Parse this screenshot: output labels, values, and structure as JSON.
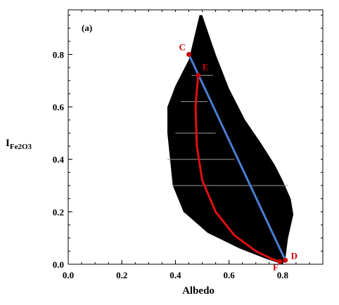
{
  "chart_data": {
    "type": "scatter",
    "panel_label": "(a)",
    "xlabel": "Albedo",
    "ylabel_main": "I",
    "ylabel_sub": "Fe2O3",
    "xlim": [
      0.0,
      0.95
    ],
    "ylim": [
      0.0,
      0.97
    ],
    "x_ticks": [
      0.0,
      0.2,
      0.4,
      0.6,
      0.8
    ],
    "x_tick_labels": [
      "0.0",
      "0.2",
      "0.4",
      "0.6",
      "0.8"
    ],
    "y_ticks": [
      0.0,
      0.2,
      0.4,
      0.6,
      0.8
    ],
    "y_tick_labels": [
      "0.0",
      "0.2",
      "0.4",
      "0.6",
      "0.8"
    ],
    "grid": false,
    "scatter_boundary": {
      "right_edge": [
        [
          0.5,
          0.95
        ],
        [
          0.55,
          0.8
        ],
        [
          0.6,
          0.67
        ],
        [
          0.66,
          0.55
        ],
        [
          0.72,
          0.46
        ],
        [
          0.77,
          0.38
        ],
        [
          0.8,
          0.32
        ],
        [
          0.83,
          0.25
        ],
        [
          0.84,
          0.19
        ],
        [
          0.82,
          0.1
        ],
        [
          0.81,
          0.02
        ]
      ],
      "left_edge": [
        [
          0.49,
          0.95
        ],
        [
          0.45,
          0.78
        ],
        [
          0.4,
          0.68
        ],
        [
          0.37,
          0.6
        ],
        [
          0.37,
          0.5
        ],
        [
          0.38,
          0.4
        ],
        [
          0.39,
          0.3
        ],
        [
          0.43,
          0.2
        ],
        [
          0.52,
          0.12
        ],
        [
          0.64,
          0.06
        ],
        [
          0.74,
          0.02
        ],
        [
          0.8,
          0.0
        ]
      ]
    },
    "points": [
      {
        "label": "C",
        "x": 0.45,
        "y": 0.8
      },
      {
        "label": "E",
        "x": 0.485,
        "y": 0.72
      },
      {
        "label": "F",
        "x": 0.79,
        "y": 0.01
      },
      {
        "label": "D",
        "x": 0.81,
        "y": 0.015
      }
    ],
    "lines": [
      {
        "color": "#4a7fd4",
        "points": [
          [
            0.45,
            0.8
          ],
          [
            0.81,
            0.015
          ]
        ]
      },
      {
        "color": "#e01010",
        "points": [
          [
            0.485,
            0.72
          ],
          [
            0.475,
            0.6
          ],
          [
            0.48,
            0.45
          ],
          [
            0.5,
            0.32
          ],
          [
            0.55,
            0.2
          ],
          [
            0.62,
            0.11
          ],
          [
            0.7,
            0.05
          ],
          [
            0.76,
            0.02
          ],
          [
            0.79,
            0.01
          ]
        ]
      }
    ]
  }
}
